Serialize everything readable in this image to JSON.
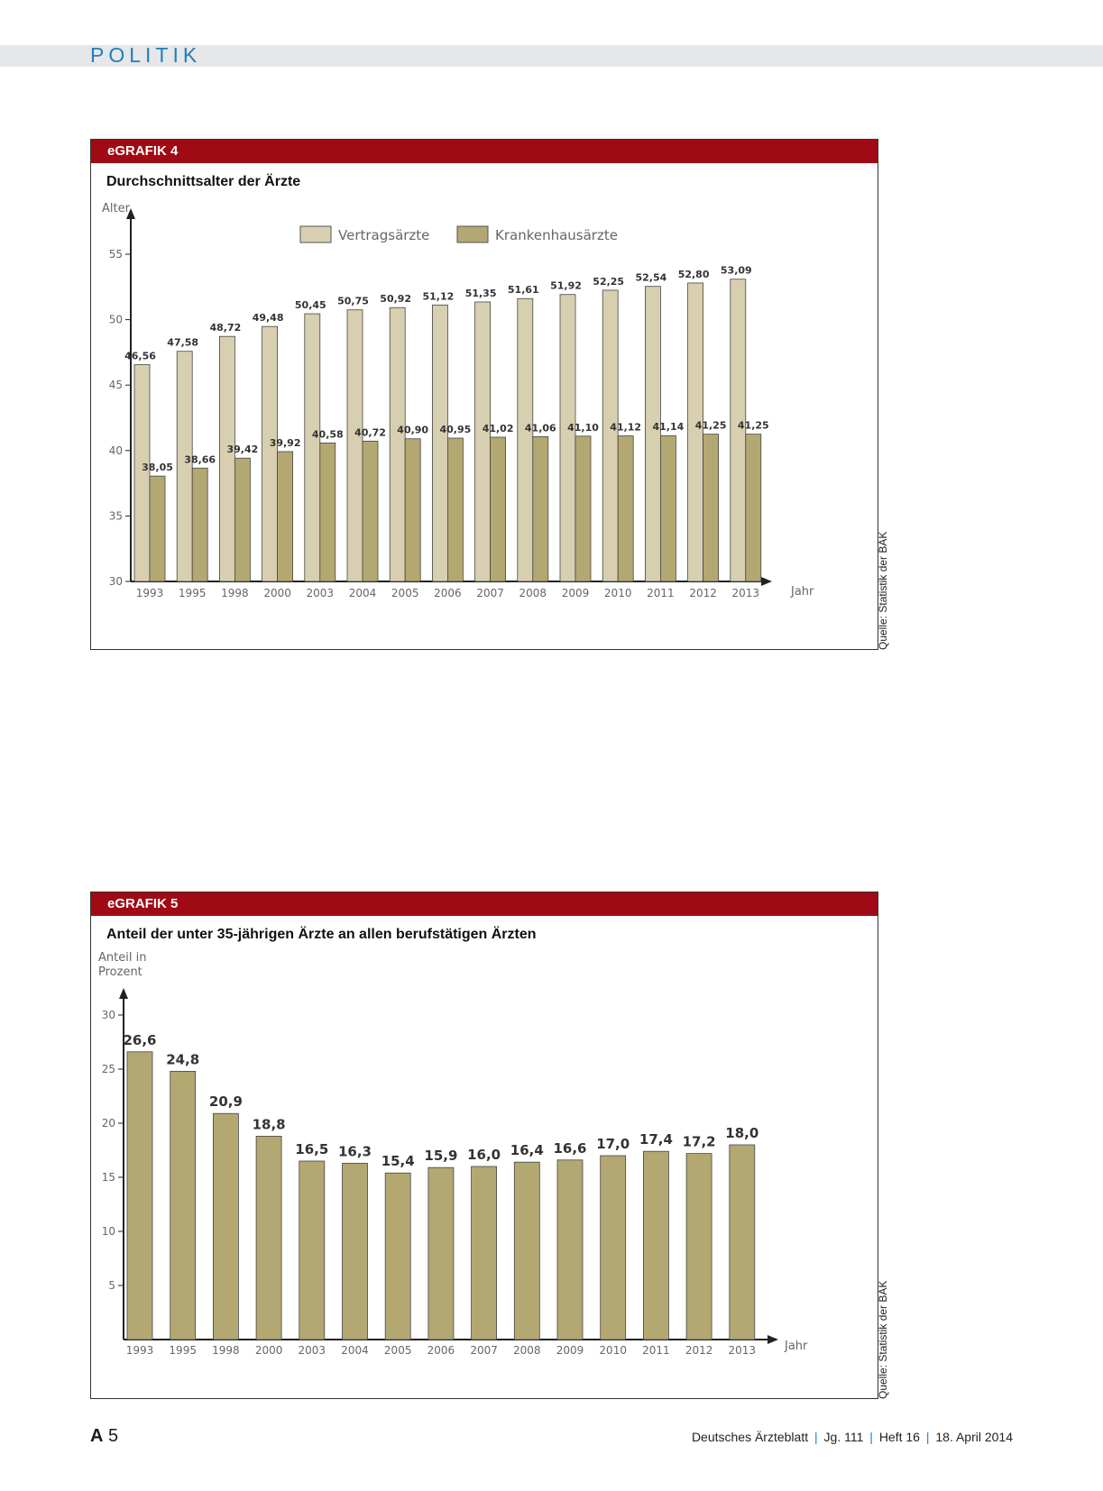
{
  "header": {
    "section": "POLITIK"
  },
  "figures": [
    {
      "tag": "eGRAFIK 4",
      "title": "Durchschnittsalter der Ärzte",
      "source": "Quelle: Statistik der BÄK",
      "chart_data": {
        "type": "bar",
        "ylabel": "Alter",
        "xlabel": "Jahr",
        "ylim": [
          30,
          55
        ],
        "yticks": [
          30,
          35,
          40,
          45,
          50,
          55
        ],
        "categories": [
          "1993",
          "1995",
          "1998",
          "2000",
          "2003",
          "2004",
          "2005",
          "2006",
          "2007",
          "2008",
          "2009",
          "2010",
          "2011",
          "2012",
          "2013"
        ],
        "legend_position": "top",
        "series": [
          {
            "name": "Vertragsärzte",
            "color": "#d8cfb0",
            "values": [
              46.56,
              47.58,
              48.72,
              49.48,
              50.45,
              50.75,
              50.92,
              51.12,
              51.35,
              51.61,
              51.92,
              52.25,
              52.54,
              52.8,
              53.09
            ],
            "labels": [
              "46,56",
              "47,58",
              "48,72",
              "49,48",
              "50,45",
              "50,75",
              "50,92",
              "51,12",
              "51,35",
              "51,61",
              "51,92",
              "52,25",
              "52,54",
              "52,80",
              "53,09"
            ]
          },
          {
            "name": "Krankenhausärzte",
            "color": "#b3a872",
            "values": [
              38.05,
              38.66,
              39.42,
              39.92,
              40.58,
              40.72,
              40.9,
              40.95,
              41.02,
              41.06,
              41.1,
              41.12,
              41.14,
              41.25,
              41.25
            ],
            "labels": [
              "38,05",
              "38,66",
              "39,42",
              "39,92",
              "40,58",
              "40,72",
              "40,90",
              "40,95",
              "41,02",
              "41,06",
              "41,10",
              "41,12",
              "41,14",
              "41,25",
              "41,25"
            ]
          }
        ]
      }
    },
    {
      "tag": "eGRAFIK 5",
      "title": "Anteil der unter 35-jährigen Ärzte an allen berufstätigen Ärzten",
      "source": "Quelle: Statistik der BÄK",
      "chart_data": {
        "type": "bar",
        "ylabel_lines": [
          "Anteil in",
          "Prozent"
        ],
        "xlabel": "Jahr",
        "ylim": [
          0,
          30
        ],
        "yticks": [
          5,
          10,
          15,
          20,
          25,
          30
        ],
        "categories": [
          "1993",
          "1995",
          "1998",
          "2000",
          "2003",
          "2004",
          "2005",
          "2006",
          "2007",
          "2008",
          "2009",
          "2010",
          "2011",
          "2012",
          "2013"
        ],
        "series": [
          {
            "color": "#b3a872",
            "values": [
              26.6,
              24.8,
              20.9,
              18.8,
              16.5,
              16.3,
              15.4,
              15.9,
              16.0,
              16.4,
              16.6,
              17.0,
              17.4,
              17.2,
              18.0
            ],
            "labels": [
              "26,6",
              "24,8",
              "20,9",
              "18,8",
              "16,5",
              "16,3",
              "15,4",
              "15,9",
              "16,0",
              "16,4",
              "16,6",
              "17,0",
              "17,4",
              "17,2",
              "18,0"
            ]
          }
        ]
      }
    }
  ],
  "footer": {
    "page_prefix": "A",
    "page_number": "5",
    "journal": "Deutsches Ärzteblatt",
    "volume": "Jg. 111",
    "issue": "Heft 16",
    "date": "18. April 2014",
    "separator": "|"
  }
}
